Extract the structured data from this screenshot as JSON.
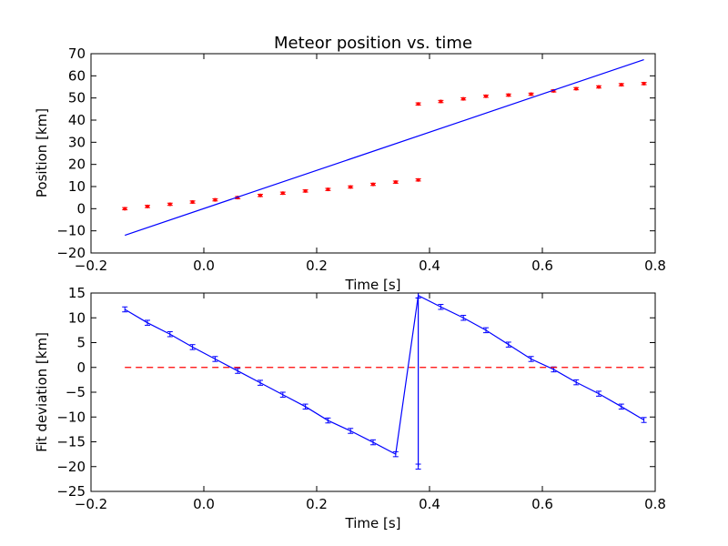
{
  "chart_data": [
    {
      "type": "scatter",
      "title": "Meteor position vs. time",
      "xlabel": "Time [s]",
      "ylabel": "Position [km]",
      "xlim": [
        -0.2,
        0.8
      ],
      "ylim": [
        -20,
        70
      ],
      "xticks": [
        -0.2,
        0.0,
        0.2,
        0.4,
        0.6,
        0.8
      ],
      "xtick_labels": [
        "−0.2",
        "0.0",
        "0.2",
        "0.4",
        "0.6",
        "0.8"
      ],
      "yticks": [
        -20,
        -10,
        0,
        10,
        20,
        30,
        40,
        50,
        60,
        70
      ],
      "ytick_labels": [
        "−20",
        "−10",
        "0",
        "10",
        "20",
        "30",
        "40",
        "50",
        "60",
        "70"
      ],
      "grid": false,
      "series": [
        {
          "kind": "points-with-error",
          "color": "#ff0000",
          "x": [
            -0.14,
            -0.1,
            -0.06,
            -0.02,
            0.02,
            0.06,
            0.1,
            0.14,
            0.18,
            0.22,
            0.26,
            0.3,
            0.34,
            0.38,
            0.38,
            0.42,
            0.46,
            0.5,
            0.54,
            0.58,
            0.62,
            0.66,
            0.7,
            0.74,
            0.78
          ],
          "y": [
            0,
            1,
            2,
            3,
            4,
            5,
            6,
            7,
            8,
            8.7,
            9.8,
            11,
            12,
            13,
            47.3,
            48.4,
            49.6,
            50.8,
            51.3,
            51.7,
            53.2,
            54.2,
            55,
            56,
            56.5
          ],
          "yerr": 0.5
        },
        {
          "kind": "line",
          "color": "#0000ff",
          "x": [
            -0.14,
            0.78
          ],
          "y": [
            -12,
            67.3
          ]
        }
      ]
    },
    {
      "type": "line",
      "title": "",
      "xlabel": "Time [s]",
      "ylabel": "Fit deviation [km]",
      "xlim": [
        -0.2,
        0.8
      ],
      "ylim": [
        -25,
        15
      ],
      "xticks": [
        -0.2,
        0.0,
        0.2,
        0.4,
        0.6,
        0.8
      ],
      "xtick_labels": [
        "−0.2",
        "0.0",
        "0.2",
        "0.4",
        "0.6",
        "0.8"
      ],
      "yticks": [
        -25,
        -20,
        -15,
        -10,
        -5,
        0,
        5,
        10,
        15
      ],
      "ytick_labels": [
        "−25",
        "−20",
        "−15",
        "−10",
        "−5",
        "0",
        "5",
        "10",
        "15"
      ],
      "grid": false,
      "series": [
        {
          "kind": "line-with-error",
          "color": "#0000ff",
          "x": [
            -0.14,
            -0.1,
            -0.06,
            -0.02,
            0.02,
            0.06,
            0.1,
            0.14,
            0.18,
            0.22,
            0.26,
            0.3,
            0.34,
            0.38,
            0.38,
            0.38,
            0.42,
            0.46,
            0.5,
            0.54,
            0.58,
            0.62,
            0.66,
            0.7,
            0.74,
            0.78
          ],
          "y": [
            11.7,
            9.0,
            6.7,
            4.1,
            1.7,
            -0.7,
            -3.1,
            -5.5,
            -7.9,
            -10.7,
            -12.8,
            -15.1,
            -17.5,
            14.5,
            -20,
            14.5,
            12.2,
            10.0,
            7.5,
            4.6,
            1.7,
            -0.4,
            -3.0,
            -5.3,
            -7.9,
            -10.6
          ],
          "yerr": 0.5
        },
        {
          "kind": "dashed-line",
          "color": "#ff0000",
          "x": [
            -0.14,
            0.78
          ],
          "y": [
            0,
            0
          ]
        }
      ]
    }
  ]
}
